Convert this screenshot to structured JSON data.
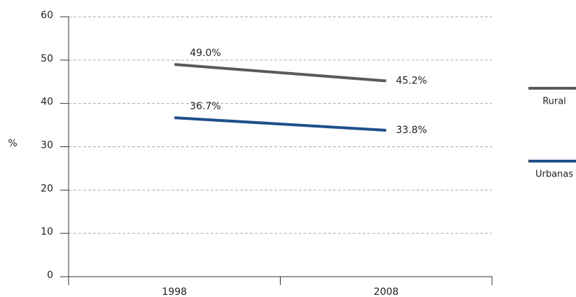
{
  "chart_data": {
    "type": "line",
    "y_label": "%",
    "categories": [
      "1998",
      "2008"
    ],
    "series": [
      {
        "name": "Rural",
        "color": "#5a5a5a",
        "values": [
          49.0,
          45.2
        ],
        "value_labels": [
          "49.0%",
          "45.2%"
        ]
      },
      {
        "name": "Urbanas",
        "color": "#1f4e8c",
        "values": [
          36.7,
          33.8
        ],
        "value_labels": [
          "36.7%",
          "33.8%"
        ]
      }
    ],
    "ylim": [
      0,
      60
    ],
    "yticks": [
      0,
      10,
      20,
      30,
      40,
      50,
      60
    ],
    "grid": true
  }
}
